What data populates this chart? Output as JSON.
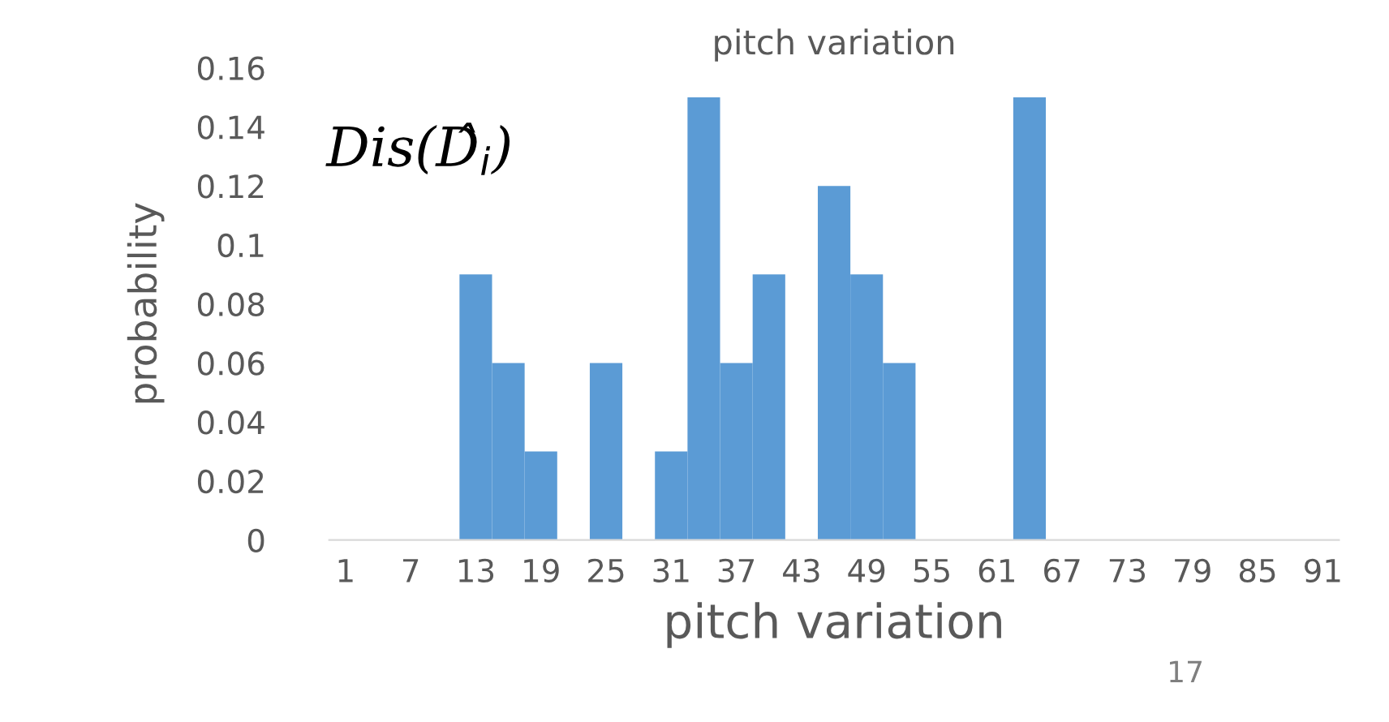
{
  "chart_data": {
    "type": "bar",
    "title": "pitch variation",
    "xlabel": "pitch variation",
    "ylabel": "probability",
    "categories": [
      "1",
      null,
      "7",
      null,
      "13",
      null,
      "19",
      null,
      "25",
      null,
      "31",
      null,
      "37",
      null,
      "43",
      null,
      "49",
      null,
      "55",
      null,
      "61",
      null,
      "67",
      null,
      "73",
      null,
      "79",
      null,
      "85",
      null,
      "91"
    ],
    "values": [
      0,
      0,
      0,
      0,
      0.09,
      0.06,
      0.03,
      0,
      0.06,
      0,
      0.03,
      0.15,
      0.06,
      0.09,
      0,
      0.12,
      0.09,
      0.06,
      0,
      0,
      0,
      0.15,
      0,
      0,
      0,
      0,
      0,
      0,
      0,
      0,
      0
    ],
    "color": "#5b9bd5",
    "ylim": [
      0,
      0.16
    ],
    "yticks": [
      0,
      0.02,
      0.04,
      0.06,
      0.08,
      0.1,
      0.12,
      0.14,
      0.16
    ],
    "grid": false,
    "legend": false,
    "annotations": [
      "Dis(D̂$_{i}$)",
      "17"
    ]
  }
}
